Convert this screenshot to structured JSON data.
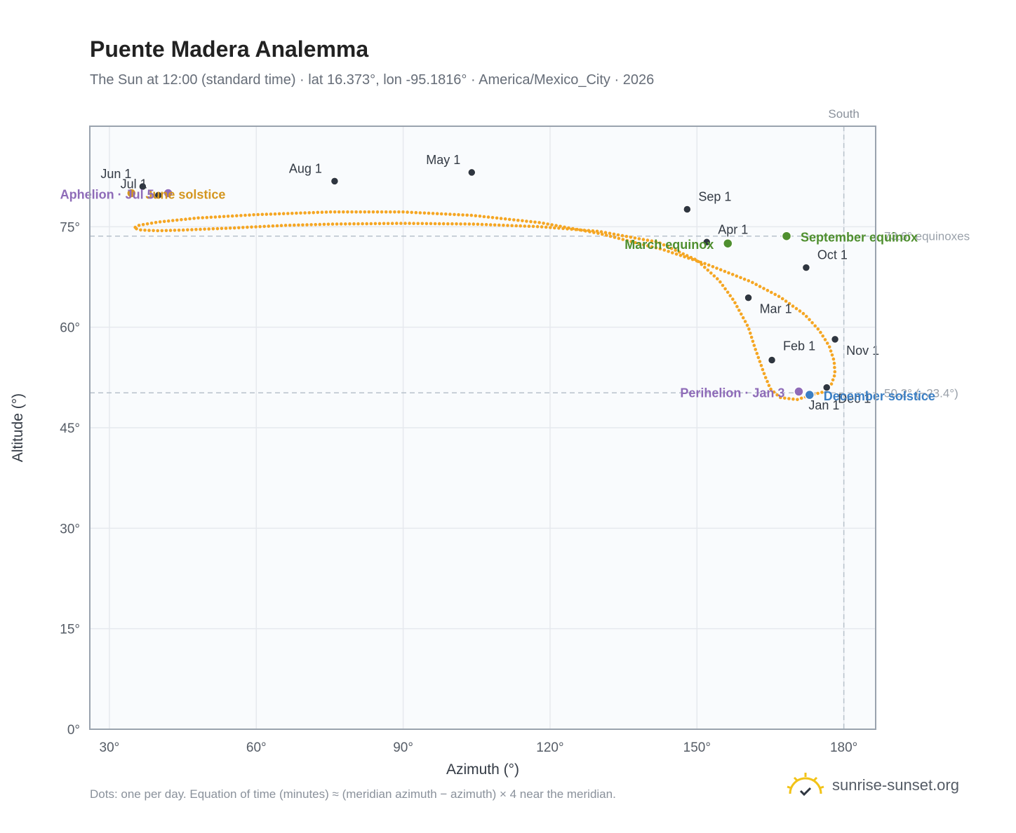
{
  "header": {
    "title": "Puente Madera Analemma",
    "subtitle": "The Sun at 12:00 (standard time) · lat 16.373°, lon -95.1816° · America/Mexico_City · 2026"
  },
  "footer": {
    "note": "Dots: one per day. Equation of time (minutes) ≈ (meridian azimuth − azimuth) × 4 near the meridian.",
    "brand": "sunrise-sunset.org"
  },
  "colors": {
    "curve": "#f5a623",
    "month_marker": "#2f3640",
    "apsis": "#8e6bb8",
    "equinox": "#4f8f2f",
    "december_solstice": "#3b7fc4",
    "june_solstice": "#d4961f",
    "grid": "#e6e9ee",
    "plot_bg": "#f9fbfd",
    "frame": "#9aa3ae",
    "reference": "#b8c2cc"
  },
  "chart_data": {
    "type": "scatter",
    "title": "Puente Madera Analemma",
    "xlabel": "Azimuth (°)",
    "ylabel": "Altitude (°)",
    "xlim": [
      26,
      186.5
    ],
    "ylim": [
      0,
      90
    ],
    "xticks": [
      30,
      60,
      90,
      120,
      150,
      180
    ],
    "yticks": [
      0,
      15,
      30,
      45,
      60,
      75
    ],
    "xtick_labels": [
      "30°",
      "60°",
      "90°",
      "120°",
      "150°",
      "180°"
    ],
    "ytick_labels": [
      "0°",
      "15°",
      "30°",
      "45°",
      "60°",
      "75°"
    ],
    "grid": true,
    "south_line": {
      "azimuth": 180,
      "label": "South"
    },
    "reference_lines": [
      {
        "altitude": 73.6,
        "label": "73.6° equinoxes"
      },
      {
        "altitude": 50.2,
        "label": "50.2° (−23.4°)"
      }
    ],
    "series": [
      {
        "style": "daily-dots",
        "points": [
          [
            173.0,
            49.8
          ],
          [
            175.6,
            50.3
          ],
          [
            177.4,
            51.4
          ],
          [
            178.2,
            53.0
          ],
          [
            178.0,
            55.0
          ],
          [
            177.0,
            57.2
          ],
          [
            175.0,
            59.5
          ],
          [
            172.0,
            61.9
          ],
          [
            167.0,
            64.5
          ],
          [
            161.0,
            66.8
          ],
          [
            152.0,
            69.4
          ],
          [
            143.0,
            71.6
          ],
          [
            130.0,
            74.0
          ],
          [
            118.0,
            75.6
          ],
          [
            104.0,
            76.7
          ],
          [
            90.0,
            77.2
          ],
          [
            75.0,
            77.2
          ],
          [
            60.0,
            76.8
          ],
          [
            48.0,
            76.3
          ],
          [
            40.0,
            75.7
          ],
          [
            36.0,
            75.2
          ],
          [
            35.0,
            74.8
          ],
          [
            36.5,
            74.5
          ],
          [
            40.0,
            74.4
          ],
          [
            45.0,
            74.5
          ],
          [
            55.0,
            74.8
          ],
          [
            66.0,
            75.2
          ],
          [
            76.0,
            75.4
          ],
          [
            90.0,
            75.5
          ],
          [
            104.0,
            75.4
          ],
          [
            118.0,
            75.0
          ],
          [
            130.0,
            74.3
          ],
          [
            142.0,
            72.7
          ],
          [
            150.0,
            70.0
          ],
          [
            154.5,
            67.0
          ],
          [
            157.5,
            64.0
          ],
          [
            160.5,
            60.0
          ],
          [
            161.8,
            57.0
          ],
          [
            163.8,
            52.9
          ],
          [
            165.0,
            50.8
          ],
          [
            167.0,
            49.5
          ],
          [
            170.5,
            49.2
          ],
          [
            173.0,
            49.8
          ]
        ]
      }
    ],
    "month_markers": [
      {
        "label": "Jan 1",
        "az": 172.8,
        "alt": 50.0
      },
      {
        "label": "Feb 1",
        "az": 165.3,
        "alt": 55.1
      },
      {
        "label": "Mar 1",
        "az": 160.5,
        "alt": 64.4
      },
      {
        "label": "Apr 1",
        "az": 152.0,
        "alt": 72.7
      },
      {
        "label": "May 1",
        "az": 104.0,
        "alt": 83.1
      },
      {
        "label": "Jun 1",
        "az": 36.8,
        "alt": 81.0
      },
      {
        "label": "Jul 1",
        "az": 40.0,
        "alt": 79.7
      },
      {
        "label": "Aug 1",
        "az": 76.0,
        "alt": 81.8
      },
      {
        "label": "Sep 1",
        "az": 148.0,
        "alt": 77.6
      },
      {
        "label": "Oct 1",
        "az": 172.3,
        "alt": 68.9
      },
      {
        "label": "Nov 1",
        "az": 178.2,
        "alt": 58.2
      },
      {
        "label": "Dec 1",
        "az": 176.5,
        "alt": 51.0
      }
    ],
    "events": [
      {
        "label": "March equinox",
        "az": 156.3,
        "alt": 72.5,
        "kind": "equinox"
      },
      {
        "label": "September equinox",
        "az": 168.3,
        "alt": 73.6,
        "kind": "equinox"
      },
      {
        "label": "June solstice",
        "az": 34.5,
        "alt": 80.0,
        "kind": "june_solstice"
      },
      {
        "label": "December solstice",
        "az": 173.0,
        "alt": 49.9,
        "kind": "december_solstice"
      },
      {
        "label": "Aphelion · Jul 5",
        "az": 42.0,
        "alt": 80.0,
        "kind": "apsis"
      },
      {
        "label": "Perihelion · Jan 3",
        "az": 170.8,
        "alt": 50.4,
        "kind": "apsis"
      }
    ]
  }
}
